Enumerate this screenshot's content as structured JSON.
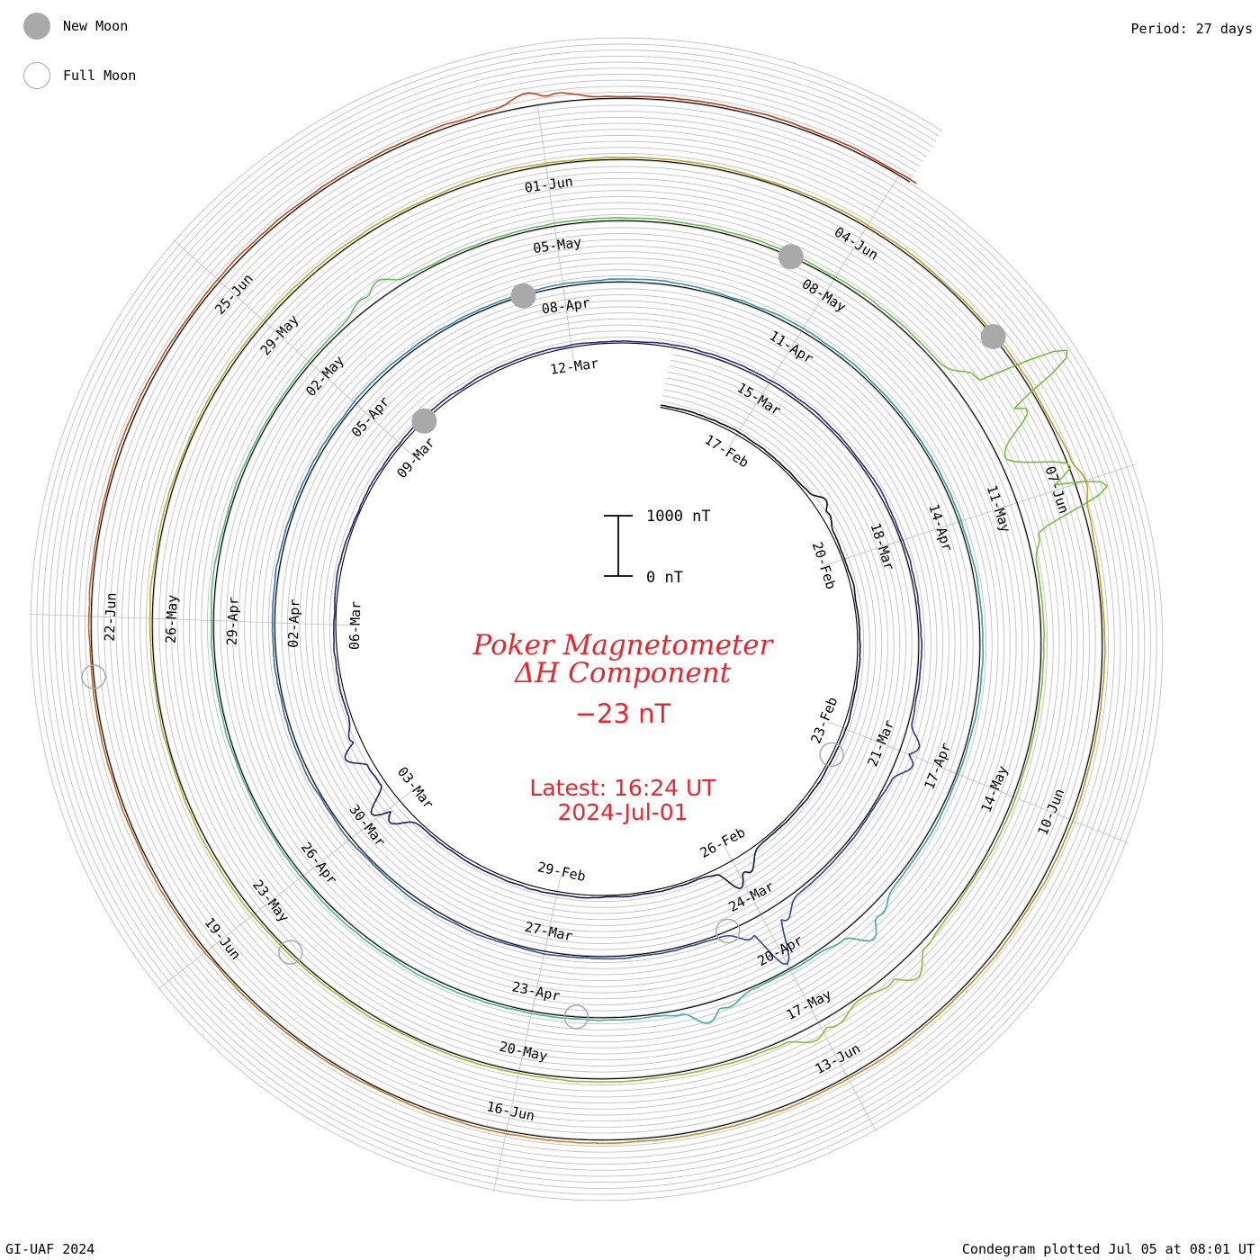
{
  "legend": {
    "new_moon": "New Moon",
    "full_moon": "Full Moon"
  },
  "period": "Period: 27 days",
  "footer_left": "GI-UAF 2024",
  "footer_right": "Condegram plotted Jul 05 at 08:01 UT",
  "center": {
    "title_line1": "Poker Magnetometer",
    "title_line2": "ΔH Component",
    "value": "−23 nT",
    "latest_line1": "Latest: 16:24 UT",
    "latest_line2": "2024-Jul-01"
  },
  "colors": {
    "title": "#e8262f",
    "grid": "#c0c0c0",
    "moon": "#a9a9a9",
    "rings": [
      "#000000",
      "#1b1b70",
      "#2a2fa0",
      "#2e87ad",
      "#3fb890",
      "#74c03a",
      "#b8b42c",
      "#c48a26",
      "#c03010"
    ]
  },
  "chart_data": {
    "type": "condegram (spiral time series)",
    "component": "ΔH",
    "units": "nT",
    "period_days": 27,
    "start": "2024-02-16",
    "end": "2024-07-01",
    "scale_bar": {
      "top_label": "1000 nT",
      "bottom_label": "0 nT",
      "span_nT": 1000
    },
    "latest_value_nT": -23,
    "date_labels": [
      "17-Feb",
      "20-Feb",
      "23-Feb",
      "26-Feb",
      "29-Feb",
      "03-Mar",
      "06-Mar",
      "09-Mar",
      "12-Mar",
      "15-Mar",
      "18-Mar",
      "21-Mar",
      "24-Mar",
      "27-Mar",
      "30-Mar",
      "02-Apr",
      "05-Apr",
      "08-Apr",
      "11-Apr",
      "14-Apr",
      "17-Apr",
      "20-Apr",
      "23-Apr",
      "26-Apr",
      "29-Apr",
      "02-May",
      "05-May",
      "08-May",
      "11-May",
      "14-May",
      "17-May",
      "20-May",
      "23-May",
      "26-May",
      "29-May",
      "01-Jun",
      "04-Jun",
      "07-Jun",
      "10-Jun",
      "13-Jun",
      "16-Jun",
      "19-Jun",
      "22-Jun",
      "25-Jun"
    ],
    "new_moons": [
      "2024-03-10",
      "2024-04-08",
      "2024-05-08",
      "2024-06-06"
    ],
    "full_moons": [
      "2024-02-24",
      "2024-03-25",
      "2024-04-23",
      "2024-05-23",
      "2024-06-22"
    ],
    "disturbances": [
      {
        "date": "2024-02-19",
        "value_nT": 180
      },
      {
        "date": "2024-02-26",
        "value_nT": 500
      },
      {
        "date": "2024-03-03",
        "value_nT": 550
      },
      {
        "date": "2024-03-04",
        "value_nT": 350
      },
      {
        "date": "2024-03-21",
        "value_nT": 350
      },
      {
        "date": "2024-03-24",
        "value_nT": 900
      },
      {
        "date": "2024-04-19",
        "value_nT": 400
      },
      {
        "date": "2024-04-21",
        "value_nT": 300
      },
      {
        "date": "2024-05-03",
        "value_nT": 250
      },
      {
        "date": "2024-05-10",
        "value_nT": 1900
      },
      {
        "date": "2024-05-11",
        "value_nT": 1700
      },
      {
        "date": "2024-05-16",
        "value_nT": 350
      },
      {
        "date": "2024-05-17",
        "value_nT": 250
      },
      {
        "date": "2024-06-07",
        "value_nT": 150
      },
      {
        "date": "2024-06-28",
        "value_nT": 200
      }
    ]
  }
}
